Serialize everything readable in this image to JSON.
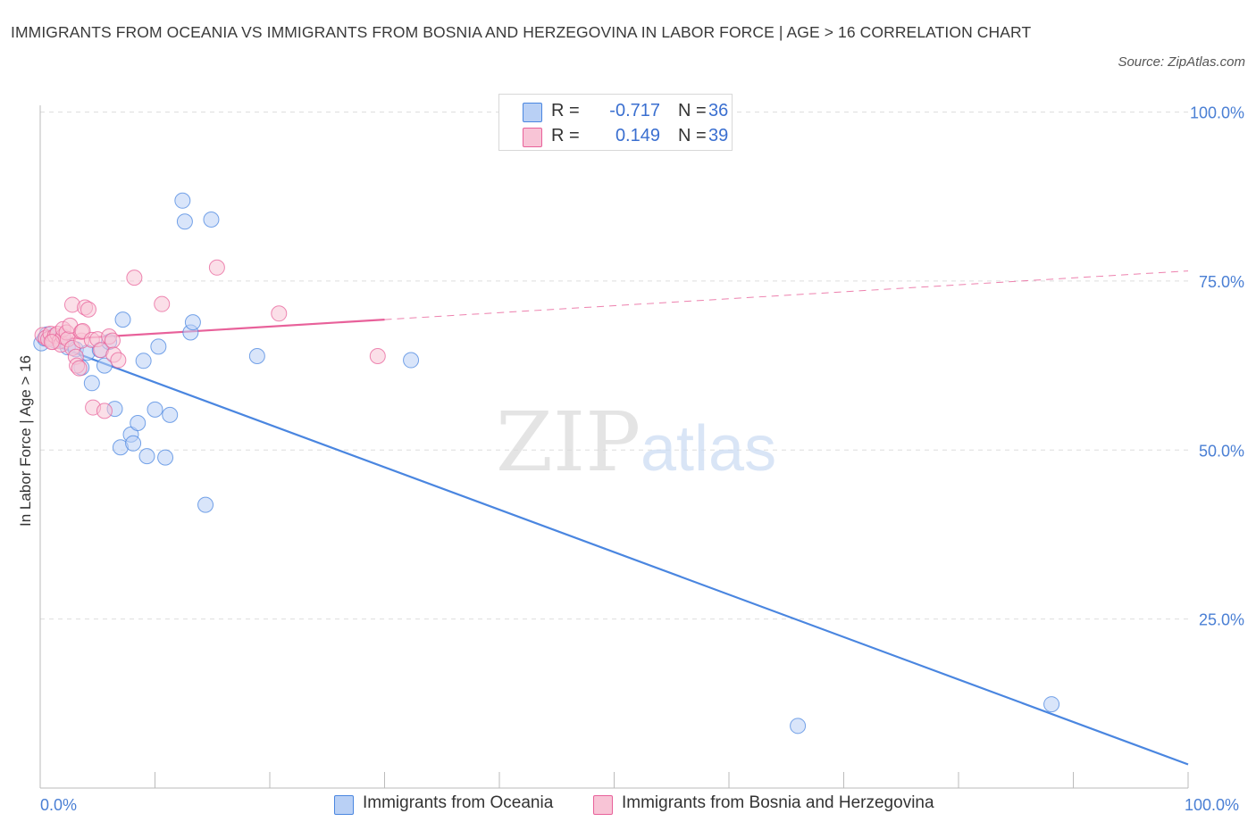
{
  "title": "IMMIGRANTS FROM OCEANIA VS IMMIGRANTS FROM BOSNIA AND HERZEGOVINA IN LABOR FORCE | AGE > 16 CORRELATION CHART",
  "source": "Source: ZipAtlas.com",
  "watermark": {
    "zip": "ZIP",
    "atlas": "atlas"
  },
  "colors": {
    "blue": "#4a86e0",
    "blue_fill": "#b9d0f5",
    "pink": "#e8619a",
    "pink_fill": "#f8c4d6",
    "axis_text": "#4a7fd4",
    "grid": "#dddddd"
  },
  "legend": {
    "rows": [
      {
        "r_label": "R =",
        "r_value": "-0.717",
        "n_label": "N =",
        "n_value": "36"
      },
      {
        "r_label": "R =",
        "r_value": "0.149",
        "n_label": "N =",
        "n_value": "39"
      }
    ]
  },
  "bottom_legend": {
    "oceania": "Immigrants from Oceania",
    "bosnia": "Immigrants from Bosnia and Herzegovina"
  },
  "chart_data": {
    "type": "scatter",
    "xlabel": "",
    "ylabel": "In Labor Force | Age > 16",
    "xlim": [
      0,
      100
    ],
    "ylim": [
      0,
      100
    ],
    "x_tick_labels": [
      "0.0%",
      "100.0%"
    ],
    "y_tick_labels": [
      "25.0%",
      "50.0%",
      "75.0%",
      "100.0%"
    ],
    "y_ticks": [
      25,
      50,
      75,
      100
    ],
    "grid": true,
    "legend_position": "top-center",
    "series": [
      {
        "name": "Immigrants from Oceania",
        "color": "blue",
        "points": [
          [
            0.1,
            65.8
          ],
          [
            0.4,
            66.5
          ],
          [
            0.6,
            67.1
          ],
          [
            0.9,
            66.6
          ],
          [
            1.3,
            66.2
          ],
          [
            2.0,
            66.6
          ],
          [
            2.4,
            65.2
          ],
          [
            3.1,
            64.9
          ],
          [
            3.6,
            62.2
          ],
          [
            4.1,
            64.4
          ],
          [
            4.5,
            59.9
          ],
          [
            5.2,
            64.8
          ],
          [
            5.6,
            62.5
          ],
          [
            6.0,
            66.0
          ],
          [
            6.5,
            56.1
          ],
          [
            7.0,
            50.4
          ],
          [
            7.2,
            69.3
          ],
          [
            7.9,
            52.3
          ],
          [
            8.1,
            51.0
          ],
          [
            8.5,
            54.0
          ],
          [
            9.0,
            63.2
          ],
          [
            9.3,
            49.1
          ],
          [
            10.0,
            56.0
          ],
          [
            10.3,
            65.3
          ],
          [
            10.9,
            48.9
          ],
          [
            11.3,
            55.2
          ],
          [
            12.4,
            86.9
          ],
          [
            12.6,
            83.8
          ],
          [
            13.1,
            67.4
          ],
          [
            13.3,
            68.9
          ],
          [
            14.4,
            41.9
          ],
          [
            14.9,
            84.1
          ],
          [
            18.9,
            63.9
          ],
          [
            32.3,
            63.3
          ],
          [
            66.0,
            9.2
          ],
          [
            88.1,
            12.4
          ]
        ]
      },
      {
        "name": "Immigrants from Bosnia and Herzegovina",
        "color": "pink",
        "points": [
          [
            0.2,
            67.0
          ],
          [
            0.5,
            66.6
          ],
          [
            0.7,
            66.4
          ],
          [
            0.9,
            67.2
          ],
          [
            1.1,
            66.0
          ],
          [
            1.3,
            66.9
          ],
          [
            1.5,
            67.2
          ],
          [
            1.7,
            66.1
          ],
          [
            1.8,
            65.6
          ],
          [
            2.0,
            66.8
          ],
          [
            2.0,
            67.9
          ],
          [
            2.3,
            67.4
          ],
          [
            2.4,
            66.4
          ],
          [
            2.6,
            68.4
          ],
          [
            2.8,
            65.1
          ],
          [
            2.8,
            71.5
          ],
          [
            3.1,
            63.8
          ],
          [
            3.2,
            62.5
          ],
          [
            3.4,
            62.1
          ],
          [
            3.6,
            66.2
          ],
          [
            3.6,
            67.5
          ],
          [
            3.7,
            67.6
          ],
          [
            3.9,
            71.1
          ],
          [
            4.2,
            70.8
          ],
          [
            4.6,
            56.3
          ],
          [
            4.5,
            66.3
          ],
          [
            5.0,
            66.4
          ],
          [
            5.3,
            64.8
          ],
          [
            5.6,
            55.8
          ],
          [
            6.0,
            66.8
          ],
          [
            6.3,
            66.2
          ],
          [
            6.4,
            64.1
          ],
          [
            6.8,
            63.3
          ],
          [
            8.2,
            75.5
          ],
          [
            10.6,
            71.6
          ],
          [
            15.4,
            77.0
          ],
          [
            20.8,
            70.2
          ],
          [
            29.4,
            63.9
          ],
          [
            1.0,
            66.0
          ]
        ]
      }
    ],
    "trend_lines": [
      {
        "series": "Immigrants from Oceania",
        "x0": 0,
        "y0": 66.3,
        "x1": 100,
        "y1": 3.5,
        "style": "solid"
      },
      {
        "series": "Immigrants from Bosnia and Herzegovina",
        "x0": 0,
        "y0": 66.2,
        "x1": 30,
        "y1": 69.3,
        "style": "solid"
      },
      {
        "series": "Immigrants from Bosnia and Herzegovina",
        "x0": 30,
        "y0": 69.3,
        "x1": 100,
        "y1": 76.5,
        "style": "dashed"
      }
    ]
  }
}
